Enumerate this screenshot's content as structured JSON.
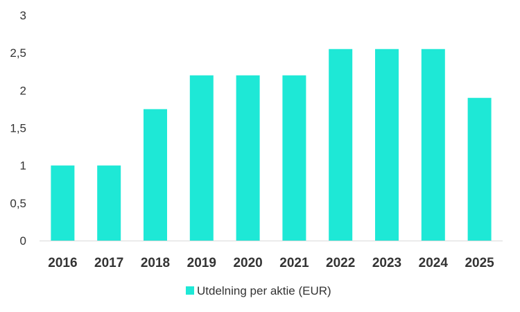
{
  "chart_data": {
    "type": "bar",
    "categories": [
      "2016",
      "2017",
      "2018",
      "2019",
      "2020",
      "2021",
      "2022",
      "2023",
      "2024",
      "2025"
    ],
    "series": [
      {
        "name": "Utdelning per aktie (EUR)",
        "values": [
          1.0,
          1.0,
          1.75,
          2.2,
          2.2,
          2.2,
          2.55,
          2.55,
          2.55,
          1.9
        ],
        "color": "#1ee8d6"
      }
    ],
    "ylim": [
      0,
      3
    ],
    "yticks": [
      "0",
      "0,5",
      "1",
      "1,5",
      "2",
      "2,5",
      "3"
    ],
    "ytick_values": [
      0,
      0.5,
      1,
      1.5,
      2,
      2.5,
      3
    ],
    "grid": false,
    "legend_position": "bottom"
  }
}
